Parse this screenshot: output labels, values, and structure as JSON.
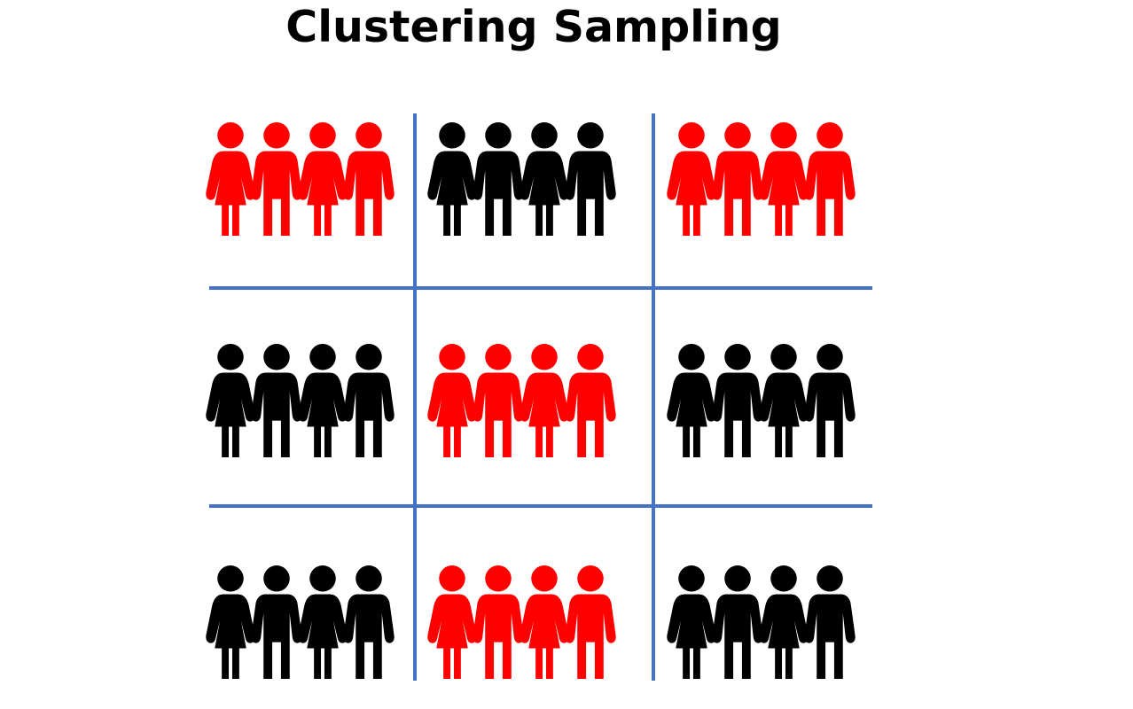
{
  "title": "Clustering Sampling",
  "colors": {
    "selected": "#ff0000",
    "unselected": "#000000",
    "grid": "#4472c4"
  },
  "icons": {
    "girl": "girl-figure-icon",
    "boy": "boy-figure-icon"
  },
  "clusters": [
    {
      "row": 1,
      "col": 1,
      "selected": true,
      "figures": [
        "girl",
        "boy",
        "girl",
        "boy"
      ]
    },
    {
      "row": 1,
      "col": 2,
      "selected": false,
      "figures": [
        "girl",
        "boy",
        "girl",
        "boy"
      ]
    },
    {
      "row": 1,
      "col": 3,
      "selected": true,
      "figures": [
        "girl",
        "boy",
        "girl",
        "boy"
      ]
    },
    {
      "row": 2,
      "col": 1,
      "selected": false,
      "figures": [
        "girl",
        "boy",
        "girl",
        "boy"
      ]
    },
    {
      "row": 2,
      "col": 2,
      "selected": true,
      "figures": [
        "girl",
        "boy",
        "girl",
        "boy"
      ]
    },
    {
      "row": 2,
      "col": 3,
      "selected": false,
      "figures": [
        "girl",
        "boy",
        "girl",
        "boy"
      ]
    },
    {
      "row": 3,
      "col": 1,
      "selected": false,
      "figures": [
        "girl",
        "boy",
        "girl",
        "boy"
      ]
    },
    {
      "row": 3,
      "col": 2,
      "selected": true,
      "figures": [
        "girl",
        "boy",
        "girl",
        "boy"
      ]
    },
    {
      "row": 3,
      "col": 3,
      "selected": false,
      "figures": [
        "girl",
        "boy",
        "girl",
        "boy"
      ]
    }
  ]
}
